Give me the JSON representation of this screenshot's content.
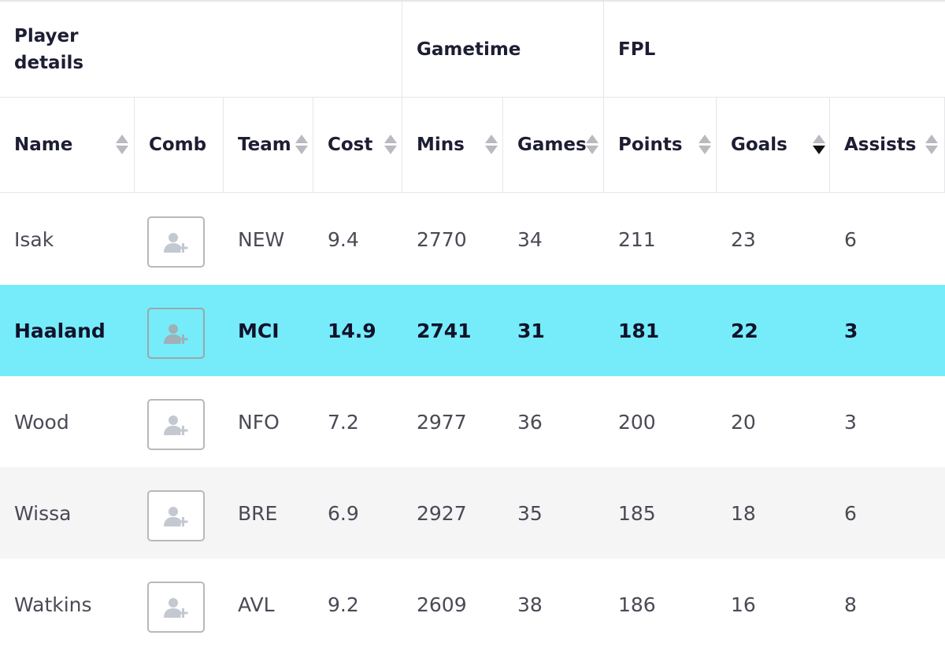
{
  "groups": {
    "player_details": "Player details",
    "gametime": "Gametime",
    "fpl": "FPL"
  },
  "columns": {
    "name": "Name",
    "comb": "Comb",
    "team": "Team",
    "cost": "Cost",
    "mins": "Mins",
    "games": "Games",
    "points": "Points",
    "goals": "Goals",
    "assists": "Assists"
  },
  "sort": {
    "active_column": "Goals",
    "direction": "descending"
  },
  "colors": {
    "highlight_row": "#76ecfa",
    "alt_row": "#f5f5f6",
    "border": "#e6e6ea"
  },
  "icons": {
    "add_player": "user-plus-icon",
    "sort": "sort-arrows-icon"
  },
  "rows": [
    {
      "name": "Isak",
      "team": "NEW",
      "cost": "9.4",
      "mins": "2770",
      "games": "34",
      "points": "211",
      "goals": "23",
      "assists": "6"
    },
    {
      "name": "Haaland",
      "team": "MCI",
      "cost": "14.9",
      "mins": "2741",
      "games": "31",
      "points": "181",
      "goals": "22",
      "assists": "3",
      "highlighted": true
    },
    {
      "name": "Wood",
      "team": "NFO",
      "cost": "7.2",
      "mins": "2977",
      "games": "36",
      "points": "200",
      "goals": "20",
      "assists": "3"
    },
    {
      "name": "Wissa",
      "team": "BRE",
      "cost": "6.9",
      "mins": "2927",
      "games": "35",
      "points": "185",
      "goals": "18",
      "assists": "6"
    },
    {
      "name": "Watkins",
      "team": "AVL",
      "cost": "9.2",
      "mins": "2609",
      "games": "38",
      "points": "186",
      "goals": "16",
      "assists": "8"
    }
  ]
}
